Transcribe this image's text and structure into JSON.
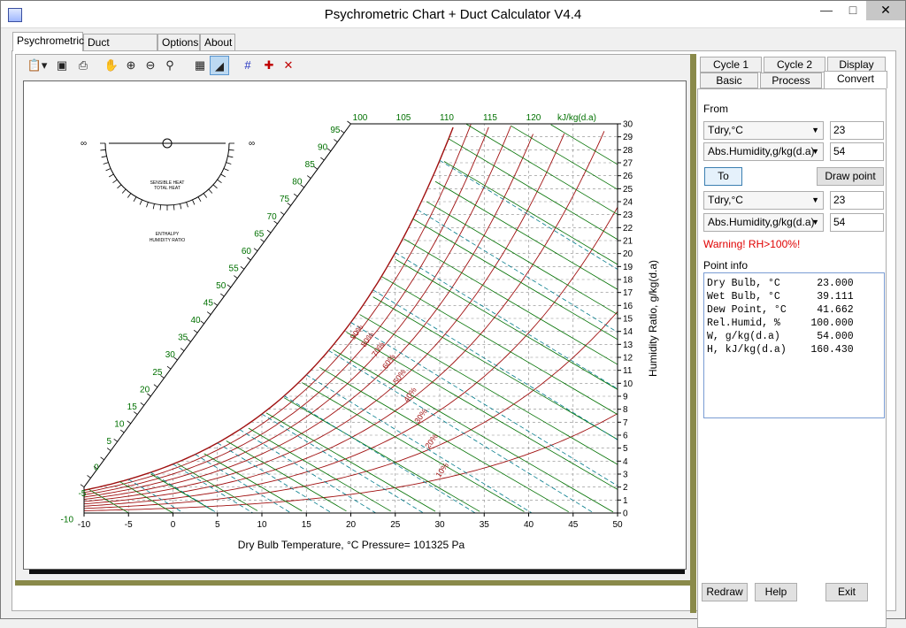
{
  "window": {
    "title": "Psychrometric Chart + Duct Calculator V4.4"
  },
  "tabs": [
    "Psychrometric",
    "Duct Calculator",
    "Options",
    "About"
  ],
  "right_tabs": {
    "row1": [
      "Cycle 1",
      "Cycle 2",
      "Display"
    ],
    "row2": [
      "Basic",
      "Process",
      "Convert"
    ]
  },
  "convert": {
    "from_label": "From",
    "from": [
      {
        "param": "Tdry,°C",
        "value": "23"
      },
      {
        "param": "Abs.Humidity,g/kg(d.a)",
        "value": "54"
      }
    ],
    "to_button": "To",
    "draw_button": "Draw point",
    "to": [
      {
        "param": "Tdry,°C",
        "value": "23"
      },
      {
        "param": "Abs.Humidity,g/kg(d.a)",
        "value": "54"
      }
    ],
    "warning": "Warning! RH>100%!",
    "info_label": "Point info",
    "info": [
      {
        "name": "Dry Bulb, °C",
        "value": "23.000"
      },
      {
        "name": "Wet Bulb, °C",
        "value": "39.111"
      },
      {
        "name": "Dew Point, °C",
        "value": "41.662"
      },
      {
        "name": "Rel.Humid, %",
        "value": "100.000"
      },
      {
        "name": "W, g/kg(d.a)",
        "value": "54.000"
      },
      {
        "name": "H, kJ/kg(d.a)",
        "value": "160.430"
      }
    ]
  },
  "bottom_buttons": {
    "redraw": "Redraw",
    "help": "Help",
    "exit": "Exit"
  },
  "chart": {
    "x_label": "Dry Bulb Temperature, °C   Pressure= 101325 Pa",
    "y_label": "Humidity Ratio, g/kg(d.a)",
    "x_ticks": [
      "-10",
      "-5",
      "0",
      "5",
      "10",
      "15",
      "20",
      "25",
      "30",
      "35",
      "40",
      "45",
      "50"
    ],
    "y_ticks": [
      "0",
      "1",
      "2",
      "3",
      "4",
      "5",
      "6",
      "7",
      "8",
      "9",
      "10",
      "11",
      "12",
      "13",
      "14",
      "15",
      "16",
      "17",
      "18",
      "19",
      "20",
      "21",
      "22",
      "23",
      "24",
      "25",
      "26",
      "27",
      "28",
      "29",
      "30"
    ],
    "enthalpy_top": [
      "100",
      "105",
      "110",
      "115",
      "120",
      "kJ/kg(d.a)"
    ],
    "enthalpy_side": [
      "95",
      "90",
      "85",
      "80",
      "75",
      "70",
      "65",
      "60",
      "55",
      "50",
      "45",
      "40",
      "35",
      "30",
      "25",
      "20",
      "15",
      "10",
      "5",
      "0",
      "-5",
      "-10"
    ],
    "rh_labels": [
      "90%",
      "80%",
      "70%",
      "60%",
      "50%",
      "40%",
      "30%",
      "20%",
      "10%"
    ],
    "protractor": {
      "sensible": "SENSIBLE HEAT",
      "total": "TOTAL HEAT",
      "enthalpy": "ENTHALPY",
      "humidity": "HUMIDITY RATIO",
      "inf": "∞"
    },
    "colors": {
      "rh": "#a01010",
      "enthalpy": "#007000",
      "wetbulb": "#007a8a",
      "grid": "#888888"
    }
  }
}
